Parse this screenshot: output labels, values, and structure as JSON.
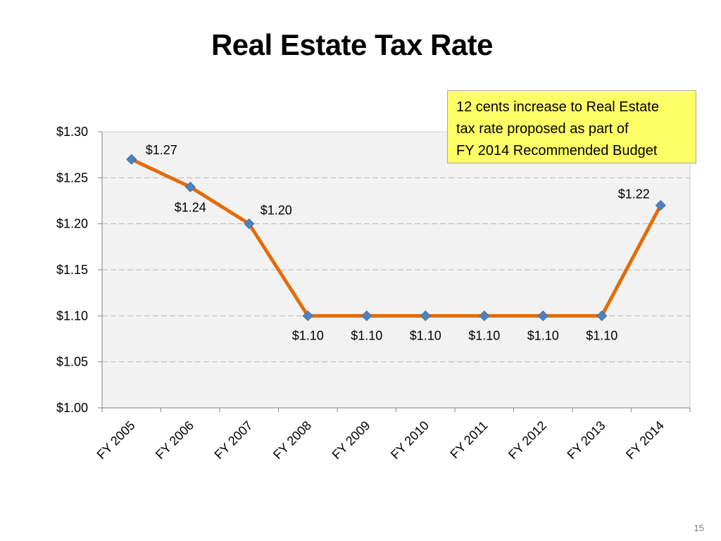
{
  "slide": {
    "title": "Real Estate Tax Rate",
    "page_number": "15"
  },
  "annotation": {
    "lines": [
      "12 cents increase to Real Estate",
      "tax rate proposed as part of",
      "FY 2014 Recommended Budget"
    ],
    "background_color": "#ffff66"
  },
  "chart_data": {
    "type": "line",
    "title": "",
    "xlabel": "",
    "ylabel": "",
    "categories": [
      "FY 2005",
      "FY 2006",
      "FY 2007",
      "FY 2008",
      "FY 2009",
      "FY 2010",
      "FY 2011",
      "FY 2012",
      "FY 2013",
      "FY 2014"
    ],
    "series": [
      {
        "values": [
          1.27,
          1.24,
          1.2,
          1.1,
          1.1,
          1.1,
          1.1,
          1.1,
          1.1,
          1.22
        ],
        "labels": [
          "$1.27",
          "$1.24",
          "$1.20",
          "$1.10",
          "$1.10",
          "$1.10",
          "$1.10",
          "$1.10",
          "$1.10",
          "$1.22"
        ],
        "line_color": "#e36c0a",
        "marker_color": "#4f81bd",
        "marker": "diamond"
      }
    ],
    "ylim": [
      1.0,
      1.3
    ],
    "yticks": [
      1.0,
      1.05,
      1.1,
      1.15,
      1.2,
      1.25,
      1.3
    ],
    "ytick_labels": [
      "$1.00",
      "$1.05",
      "$1.10",
      "$1.15",
      "$1.20",
      "$1.25",
      "$1.30"
    ],
    "grid": true,
    "legend": "none",
    "plot_background": "#f2f2f2"
  }
}
